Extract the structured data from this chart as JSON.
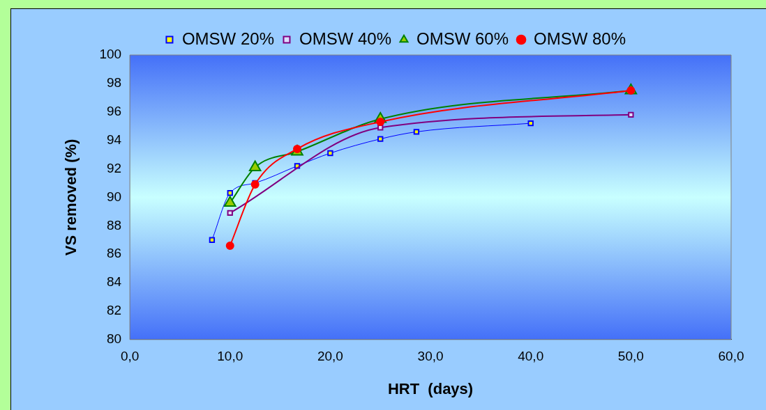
{
  "chart_data": {
    "type": "line",
    "xlabel": "HRT  (days)",
    "ylabel": "VS removed (%)",
    "xlim": [
      0,
      60
    ],
    "xticks": [
      {
        "value": 0,
        "label": "0,0"
      },
      {
        "value": 10,
        "label": "10,0"
      },
      {
        "value": 20,
        "label": "20,0"
      },
      {
        "value": 30,
        "label": "30,0"
      },
      {
        "value": 40,
        "label": "40,0"
      },
      {
        "value": 50,
        "label": "50,0"
      },
      {
        "value": 60,
        "label": "60,0"
      }
    ],
    "ylim": [
      80,
      100
    ],
    "yticks": [
      80,
      82,
      84,
      86,
      88,
      90,
      92,
      94,
      96,
      98,
      100
    ],
    "grid": false,
    "legend": "top",
    "series": [
      {
        "name": "OMSW 20%",
        "color": "#0000ff",
        "marker": "square",
        "x": [
          8.2,
          10,
          12.5,
          16.7,
          20,
          25,
          28.6,
          40
        ],
        "values": [
          87.0,
          90.3,
          91.0,
          92.2,
          93.1,
          94.1,
          94.6,
          95.2
        ]
      },
      {
        "name": "OMSW 40%",
        "color": "#800080",
        "marker": "square",
        "x": [
          10,
          12.5,
          16.7,
          25,
          50
        ],
        "values": [
          88.9,
          null,
          null,
          94.9,
          95.8
        ]
      },
      {
        "name": "OMSW 60%",
        "color": "#008000",
        "marker": "triangle",
        "x": [
          10,
          12.5,
          16.7,
          25,
          50
        ],
        "values": [
          89.6,
          92.1,
          93.2,
          95.5,
          97.5
        ]
      },
      {
        "name": "OMSW 80%",
        "color": "#ff0000",
        "marker": "circle",
        "x": [
          10,
          12.5,
          16.7,
          25,
          50
        ],
        "values": [
          86.6,
          90.9,
          93.4,
          95.3,
          97.5
        ]
      }
    ]
  }
}
